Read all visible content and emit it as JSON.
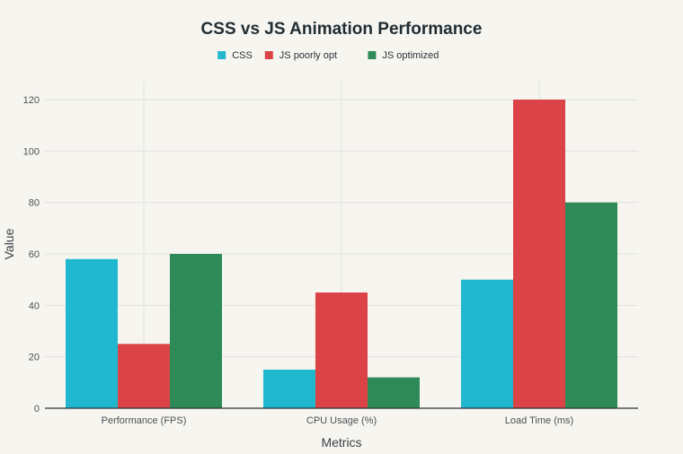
{
  "chart_data": {
    "type": "bar",
    "title": "CSS vs JS Animation Performance",
    "xlabel": "Metrics",
    "ylabel": "Value",
    "ylim": [
      0,
      120
    ],
    "yticks": [
      0,
      20,
      40,
      60,
      80,
      100,
      120
    ],
    "grid": true,
    "legend_position": "top-center",
    "categories": [
      "Performance (FPS)",
      "CPU Usage (%)",
      "Load Time (ms)"
    ],
    "series": [
      {
        "name": "CSS",
        "color": "#21b8cf",
        "values": [
          58,
          15,
          50
        ]
      },
      {
        "name": "JS poorly opt",
        "color": "#dc4347",
        "values": [
          25,
          45,
          120
        ]
      },
      {
        "name": "JS optimized",
        "color": "#2e8a57",
        "values": [
          60,
          12,
          80
        ]
      }
    ]
  }
}
